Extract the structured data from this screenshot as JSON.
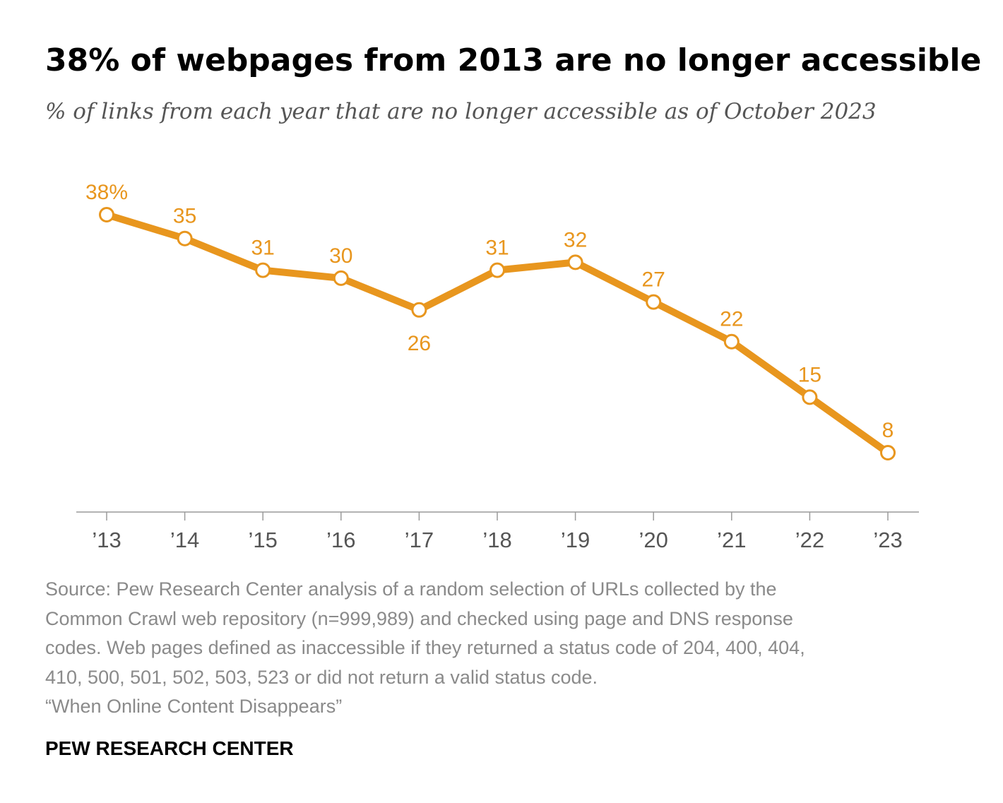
{
  "header": {
    "title": "38% of webpages from 2013 are no longer accessible",
    "subtitle": "% of links from each year that are no longer accessible as of October 2023"
  },
  "chart_data": {
    "type": "line",
    "title": "38% of webpages from 2013 are no longer accessible",
    "subtitle": "% of links from each year that are no longer accessible as of October 2023",
    "categories": [
      "’13",
      "’14",
      "’15",
      "’16",
      "’17",
      "’18",
      "’19",
      "’20",
      "’21",
      "’22",
      "’23"
    ],
    "series": [
      {
        "name": "% of links no longer accessible",
        "values": [
          38,
          35,
          31,
          30,
          26,
          31,
          32,
          27,
          22,
          15,
          8
        ],
        "labels": [
          "38%",
          "35",
          "31",
          "30",
          "26",
          "31",
          "32",
          "27",
          "22",
          "15",
          "8"
        ],
        "label_positions": [
          "above",
          "above",
          "above",
          "above",
          "below",
          "above",
          "above",
          "above",
          "above",
          "above",
          "above"
        ]
      }
    ],
    "xlabel": "",
    "ylabel": "",
    "ylim": [
      0,
      38
    ],
    "grid": false,
    "legend": "none",
    "colors": {
      "line": "#E8961E",
      "label": "#E8961E",
      "marker_fill": "#FFFFFF",
      "axis": "#9a9a9a",
      "tick_label": "#555555"
    }
  },
  "footer": {
    "source_lines": [
      "Source: Pew Research Center analysis of a random selection of URLs collected by the",
      "Common Crawl web repository (n=999,989) and checked using page and DNS response",
      "codes. Web pages defined as inaccessible if they returned a status code of 204, 400, 404,",
      "410, 500, 501, 502, 503, 523 or did not return a valid status code.",
      "“When Online Content Disappears”"
    ],
    "brand": "PEW RESEARCH CENTER"
  }
}
